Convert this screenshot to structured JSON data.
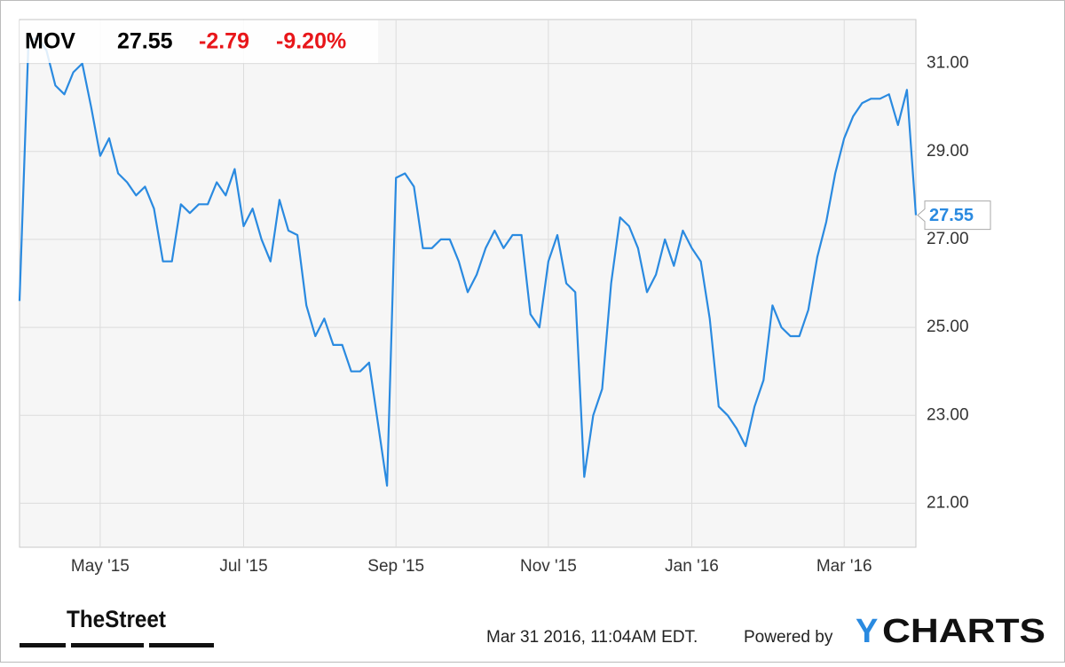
{
  "chart_data": {
    "type": "line",
    "header": {
      "ticker": "MOV",
      "change": "-2.79",
      "change_percent": "-9.20%"
    },
    "categories": [
      null,
      null,
      null,
      null,
      null,
      null,
      null,
      null,
      null,
      "May '15",
      null,
      null,
      null,
      null,
      null,
      null,
      null,
      null,
      null,
      null,
      null,
      null,
      null,
      null,
      null,
      "Jul '15",
      null,
      null,
      null,
      null,
      null,
      null,
      null,
      null,
      null,
      null,
      null,
      null,
      null,
      null,
      null,
      null,
      "Sep '15",
      null,
      null,
      null,
      null,
      null,
      null,
      null,
      null,
      null,
      null,
      null,
      null,
      null,
      null,
      null,
      null,
      "Nov '15",
      null,
      null,
      null,
      null,
      null,
      null,
      null,
      null,
      null,
      null,
      null,
      null,
      null,
      null,
      null,
      "Jan '16",
      null,
      null,
      null,
      null,
      null,
      null,
      null,
      null,
      null,
      null,
      null,
      null,
      null,
      null,
      null,
      null,
      "Mar '16",
      null,
      null,
      null,
      null,
      null,
      null,
      null,
      null
    ],
    "values": [
      25.6,
      31.5,
      31.6,
      31.3,
      30.5,
      30.3,
      30.8,
      31.0,
      30.0,
      28.9,
      29.3,
      28.5,
      28.3,
      28.0,
      28.2,
      27.7,
      26.5,
      26.5,
      27.8,
      27.6,
      27.8,
      27.8,
      28.3,
      28.0,
      28.6,
      27.3,
      27.7,
      27.0,
      26.5,
      27.9,
      27.2,
      27.1,
      25.5,
      24.8,
      25.2,
      24.6,
      24.6,
      24.0,
      24.0,
      24.2,
      22.8,
      21.4,
      28.4,
      28.5,
      28.2,
      26.8,
      26.8,
      27.0,
      27.0,
      26.5,
      25.8,
      26.2,
      26.8,
      27.2,
      26.8,
      27.1,
      27.1,
      25.3,
      25.0,
      26.5,
      27.1,
      26.0,
      25.8,
      21.6,
      23.0,
      23.6,
      26.0,
      27.5,
      27.3,
      26.8,
      25.8,
      26.2,
      27.0,
      26.4,
      27.2,
      26.8,
      26.5,
      25.2,
      23.2,
      23.0,
      22.7,
      22.3,
      23.2,
      23.8,
      25.5,
      25.0,
      24.8,
      24.8,
      25.4,
      26.6,
      27.4,
      28.5,
      29.3,
      29.8,
      30.1,
      30.2,
      30.2,
      30.3,
      29.6,
      30.4,
      27.55
    ],
    "color": "#2a8ae0",
    "ylim": [
      20,
      32
    ],
    "yticks": [
      {
        "value": 21,
        "label": "21.00"
      },
      {
        "value": 23,
        "label": "23.00"
      },
      {
        "value": 25,
        "label": "25.00"
      },
      {
        "value": 27,
        "label": "27.00"
      },
      {
        "value": 29,
        "label": "29.00"
      },
      {
        "value": 31,
        "label": "31.00"
      }
    ],
    "grid": true,
    "footer": {
      "brand": "TheStreet",
      "timestamp": "Mar 31 2016, 11:04AM EDT.",
      "powered_by": "Powered by",
      "logo_y": "Y",
      "logo_rest": "CHARTS"
    }
  }
}
